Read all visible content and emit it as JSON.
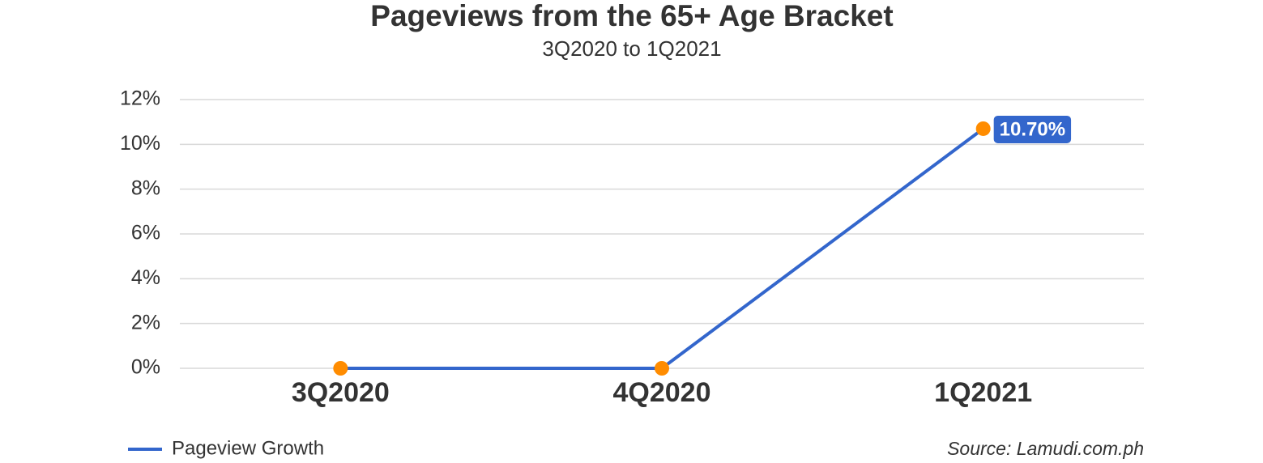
{
  "chart_data": {
    "type": "line",
    "title": "Pageviews from the 65+ Age Bracket",
    "subtitle": "3Q2020 to 1Q2021",
    "categories": [
      "3Q2020",
      "4Q2020",
      "1Q2021"
    ],
    "series": [
      {
        "name": "Pageview Growth",
        "color": "#3366cc",
        "marker_color": "#ff8c00",
        "values": [
          0,
          0,
          10.7
        ],
        "value_labels": [
          null,
          null,
          "10.70%"
        ]
      }
    ],
    "ylim": [
      0,
      12
    ],
    "yticks": [
      {
        "value": 0,
        "label": "0%"
      },
      {
        "value": 2,
        "label": "2%"
      },
      {
        "value": 4,
        "label": "4%"
      },
      {
        "value": 6,
        "label": "6%"
      },
      {
        "value": 8,
        "label": "8%"
      },
      {
        "value": 10,
        "label": "10%"
      },
      {
        "value": 12,
        "label": "12%"
      }
    ],
    "grid": true,
    "legend": "bottom-left",
    "source": "Source: Lamudi.com.ph"
  }
}
